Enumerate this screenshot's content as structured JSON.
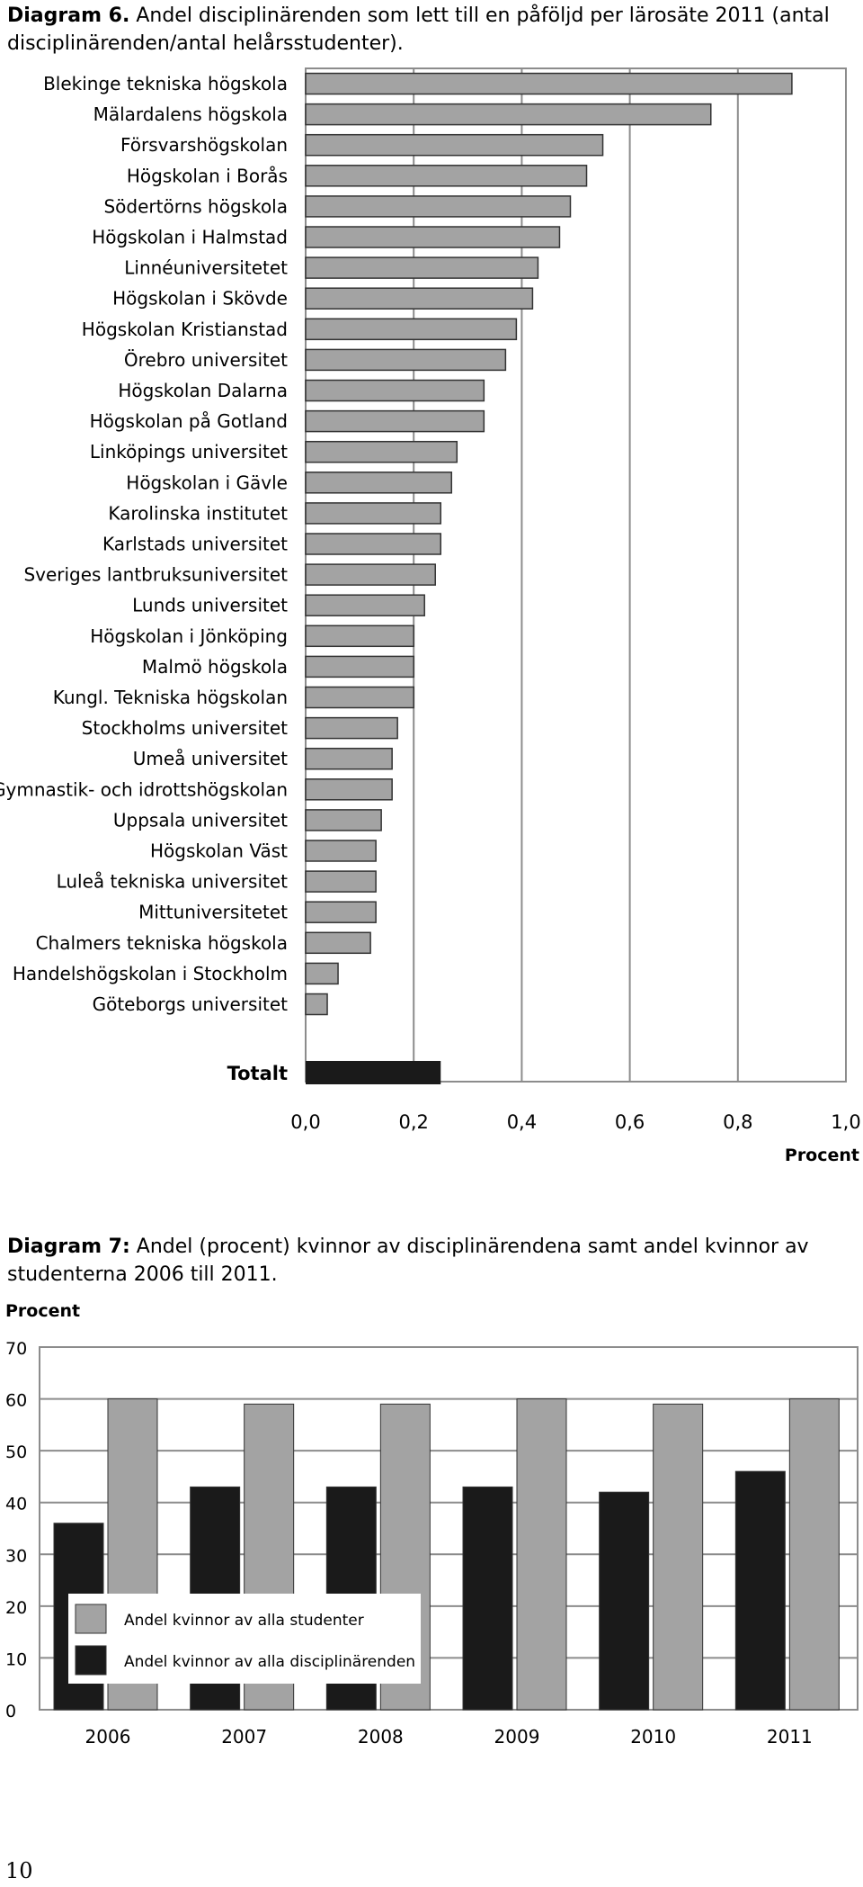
{
  "page_number": "10",
  "chart_data": [
    {
      "type": "bar",
      "orientation": "horizontal",
      "caption_lead": "Diagram 6.",
      "caption_text": " Andel disciplinärenden som lett till en påföljd per lärosäte 2011 (antal disciplinärenden/antal helårsstudenter).",
      "xlabel": "Procent",
      "xlim": [
        0,
        1.0
      ],
      "xticks": [
        "0,0",
        "0,2",
        "0,4",
        "0,6",
        "0,8",
        "1,0"
      ],
      "grid": true,
      "colors": {
        "bars": "#a3a3a3",
        "total": "#1a1a1a",
        "border": "#333333"
      },
      "categories": [
        "Blekinge tekniska högskola",
        "Mälardalens högskola",
        "Försvarshögskolan",
        "Högskolan i Borås",
        "Södertörns högskola",
        "Högskolan i Halmstad",
        "Linnéuniversitetet",
        "Högskolan i Skövde",
        "Högskolan Kristianstad",
        "Örebro universitet",
        "Högskolan Dalarna",
        "Högskolan på Gotland",
        "Linköpings universitet",
        "Högskolan i Gävle",
        "Karolinska institutet",
        "Karlstads universitet",
        "Sveriges lantbruksuniversitet",
        "Lunds universitet",
        "Högskolan i Jönköping",
        "Malmö högskola",
        "Kungl. Tekniska högskolan",
        "Stockholms universitet",
        "Umeå universitet",
        "Gymnastik- och idrottshögskolan",
        "Uppsala universitet",
        "Högskolan Väst",
        "Luleå tekniska universitet",
        "Mittuniversitetet",
        "Chalmers tekniska högskola",
        "Handelshögskolan i Stockholm",
        "Göteborgs universitet"
      ],
      "values": [
        0.9,
        0.75,
        0.55,
        0.52,
        0.49,
        0.47,
        0.43,
        0.42,
        0.39,
        0.37,
        0.33,
        0.33,
        0.28,
        0.27,
        0.25,
        0.25,
        0.24,
        0.22,
        0.2,
        0.2,
        0.2,
        0.17,
        0.16,
        0.16,
        0.14,
        0.13,
        0.13,
        0.13,
        0.12,
        0.06,
        0.04
      ],
      "total_label": "Totalt",
      "total_value": 0.25
    },
    {
      "type": "bar",
      "caption_lead": "Diagram 7:",
      "caption_text": " Andel (procent) kvinnor av disciplinärendena samt andel kvinnor av studenterna 2006 till 2011.",
      "ylabel": "Procent",
      "ylim": [
        0,
        70
      ],
      "yticks": [
        "0",
        "10",
        "20",
        "30",
        "40",
        "50",
        "60",
        "70"
      ],
      "grid": true,
      "categories": [
        "2006",
        "2007",
        "2008",
        "2009",
        "2010",
        "2011"
      ],
      "series": [
        {
          "name": "Andel kvinnor av alla disciplinärenden",
          "color": "#1a1a1a",
          "values": [
            36,
            43,
            43,
            43,
            42,
            46
          ]
        },
        {
          "name": "Andel kvinnor av alla studenter",
          "color": "#a3a3a3",
          "values": [
            60,
            59,
            59,
            60,
            59,
            60
          ]
        }
      ],
      "legend": {
        "placement": "bottom-left",
        "items": [
          "Andel kvinnor av alla studenter",
          "Andel kvinnor av alla disciplinärenden"
        ]
      }
    }
  ]
}
